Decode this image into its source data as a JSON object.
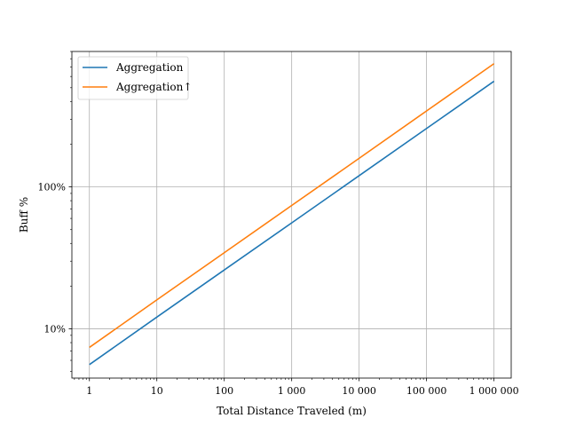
{
  "chart_data": {
    "type": "line",
    "title": "",
    "xlabel": "Total Distance Traveled (m)",
    "ylabel": "Buff %",
    "xscale": "log",
    "yscale": "log",
    "xlim": [
      0.55,
      1800000
    ],
    "ylim": [
      0.045,
      9.0
    ],
    "grid": true,
    "legend_position": "top-left",
    "x_ticks": [
      1,
      10,
      100,
      1000,
      10000,
      100000,
      1000000
    ],
    "x_tick_labels": [
      "1",
      "10",
      "100",
      "1 000",
      "10 000",
      "100 000",
      "1 000 000"
    ],
    "y_ticks": [
      0.1,
      1.0
    ],
    "y_tick_labels": [
      "10%",
      "100%"
    ],
    "x": [
      1,
      10,
      100,
      1000,
      10000,
      100000,
      1000000
    ],
    "series": [
      {
        "name": "Aggregation",
        "color": "#1f77b4",
        "values": [
          0.056,
          0.121,
          0.26,
          0.558,
          1.2,
          2.58,
          5.55
        ]
      },
      {
        "name": "Aggregation↑",
        "color": "#ff7f0e",
        "values": [
          0.074,
          0.16,
          0.344,
          0.74,
          1.59,
          3.43,
          7.38
        ]
      }
    ]
  }
}
